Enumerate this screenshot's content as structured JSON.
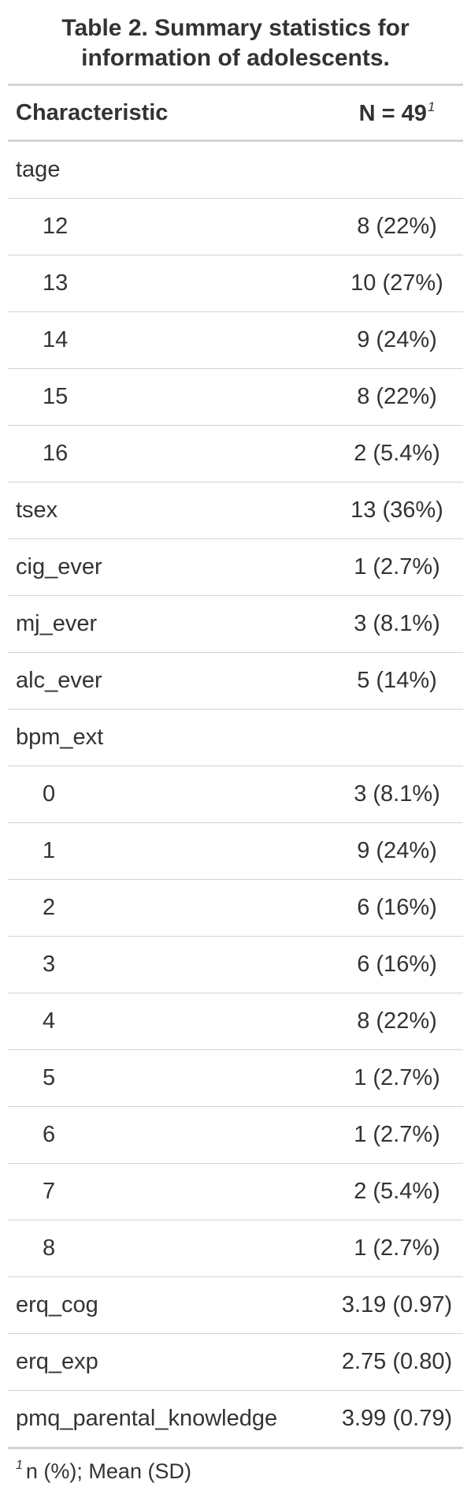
{
  "caption": "Table 2. Summary statistics for information of adolescents.",
  "header": {
    "characteristic": "Characteristic",
    "n_label": "N = 49",
    "n_footnote_mark": "1"
  },
  "rows": [
    {
      "label": "tage",
      "value": "",
      "indent": false
    },
    {
      "label": "12",
      "value": "8 (22%)",
      "indent": true
    },
    {
      "label": "13",
      "value": "10 (27%)",
      "indent": true
    },
    {
      "label": "14",
      "value": "9 (24%)",
      "indent": true
    },
    {
      "label": "15",
      "value": "8 (22%)",
      "indent": true
    },
    {
      "label": "16",
      "value": "2 (5.4%)",
      "indent": true
    },
    {
      "label": "tsex",
      "value": "13 (36%)",
      "indent": false
    },
    {
      "label": "cig_ever",
      "value": "1 (2.7%)",
      "indent": false
    },
    {
      "label": "mj_ever",
      "value": "3 (8.1%)",
      "indent": false
    },
    {
      "label": "alc_ever",
      "value": "5 (14%)",
      "indent": false
    },
    {
      "label": "bpm_ext",
      "value": "",
      "indent": false
    },
    {
      "label": "0",
      "value": "3 (8.1%)",
      "indent": true
    },
    {
      "label": "1",
      "value": "9 (24%)",
      "indent": true
    },
    {
      "label": "2",
      "value": "6 (16%)",
      "indent": true
    },
    {
      "label": "3",
      "value": "6 (16%)",
      "indent": true
    },
    {
      "label": "4",
      "value": "8 (22%)",
      "indent": true
    },
    {
      "label": "5",
      "value": "1 (2.7%)",
      "indent": true
    },
    {
      "label": "6",
      "value": "1 (2.7%)",
      "indent": true
    },
    {
      "label": "7",
      "value": "2 (5.4%)",
      "indent": true
    },
    {
      "label": "8",
      "value": "1 (2.7%)",
      "indent": true
    },
    {
      "label": "erq_cog",
      "value": "3.19 (0.97)",
      "indent": false
    },
    {
      "label": "erq_exp",
      "value": "2.75 (0.80)",
      "indent": false
    },
    {
      "label": "pmq_parental_knowledge",
      "value": "3.99 (0.79)",
      "indent": false
    }
  ],
  "footnote": {
    "mark": "1",
    "text": "n (%); Mean (SD)"
  }
}
